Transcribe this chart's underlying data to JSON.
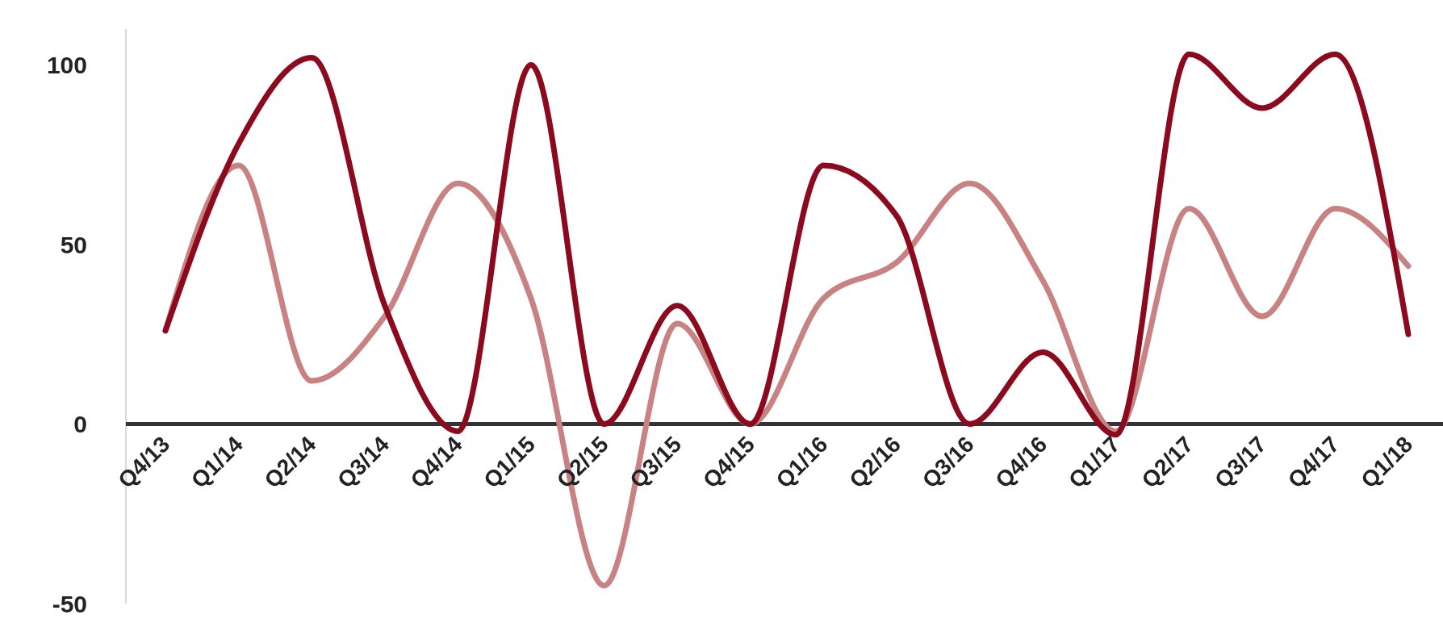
{
  "chart_data": {
    "type": "line",
    "categories": [
      "Q4/13",
      "Q1/14",
      "Q2/14",
      "Q3/14",
      "Q4/14",
      "Q1/15",
      "Q2/15",
      "Q3/15",
      "Q4/15",
      "Q1/16",
      "Q2/16",
      "Q3/16",
      "Q4/16",
      "Q1/17",
      "Q2/17",
      "Q3/17",
      "Q4/17",
      "Q1/18"
    ],
    "series": [
      {
        "color": "#c98282",
        "values": [
          26,
          72,
          12,
          30,
          67,
          35,
          -45,
          28,
          0,
          35,
          45,
          67,
          40,
          -2,
          60,
          30,
          60,
          44
        ]
      },
      {
        "color": "#8b0a1e",
        "values": [
          26,
          78,
          102,
          33,
          -2,
          100,
          0,
          33,
          0,
          72,
          58,
          0,
          20,
          -3,
          103,
          88,
          103,
          25
        ]
      }
    ],
    "ylim": [
      -50,
      110
    ],
    "yticks": [
      -50,
      0,
      50,
      100
    ],
    "marker": "none",
    "line_style": "solid"
  }
}
